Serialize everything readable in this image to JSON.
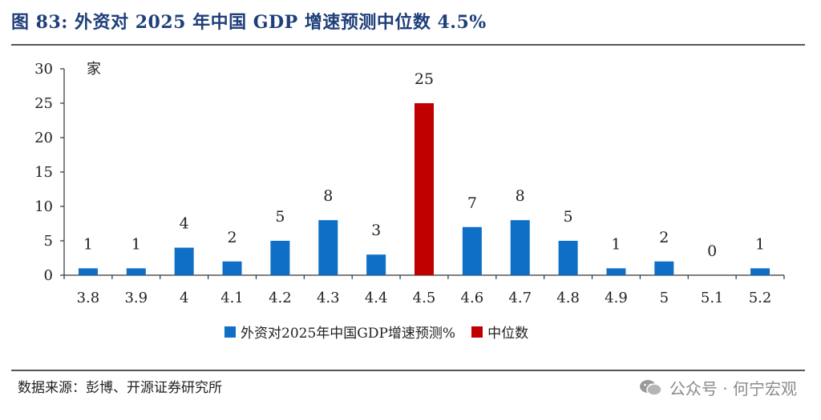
{
  "header": {
    "title": "图 83:  外资对 2025 年中国 GDP 增速预测中位数 4.5%"
  },
  "chart_data": {
    "type": "bar",
    "unit_label": "家",
    "categories": [
      "3.8",
      "3.9",
      "4",
      "4.1",
      "4.2",
      "4.3",
      "4.4",
      "4.5",
      "4.6",
      "4.7",
      "4.8",
      "4.9",
      "5",
      "5.1",
      "5.2"
    ],
    "values": [
      1,
      1,
      4,
      2,
      5,
      8,
      3,
      25,
      7,
      8,
      5,
      1,
      2,
      0,
      1
    ],
    "highlight_index": 7,
    "ylim": [
      0,
      30
    ],
    "yticks": [
      0,
      5,
      10,
      15,
      20,
      25,
      30
    ],
    "series": [
      {
        "name": "外资对2025年中国GDP增速预测%",
        "color": "#0f6fc6"
      },
      {
        "name": "中位数",
        "color": "#c00000"
      }
    ],
    "legend_position": "bottom"
  },
  "footer": {
    "source": "数据来源：彭博、开源证券研究所",
    "watermark": "公众号 · 何宁宏观"
  }
}
